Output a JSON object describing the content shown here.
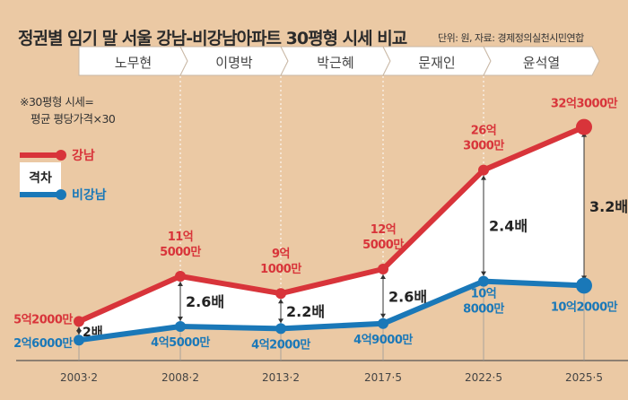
{
  "title": "정권별 임기 말 서울 강남-비강남아파트 30평형 시세 비교",
  "source": "단위: 원, 자료: 경제정의실천시민연합",
  "note": [
    "※30평형 시세=",
    "평균 평당가격×30"
  ],
  "legend": {
    "gangnam": "강남",
    "gap": "격차",
    "non_gangnam": "비강남"
  },
  "colors": {
    "gangnam": "#d8343a",
    "non_gangnam": "#1a78b8",
    "background": "#ebc9a4",
    "gap_fill": "#ffffff"
  },
  "chart_data": {
    "type": "line",
    "title": "정권별 임기 말 서울 강남-비강남아파트 30평형 시세 비교",
    "unit": "원",
    "periods": [
      "노무현",
      "이명박",
      "박근혜",
      "문재인",
      "윤석열"
    ],
    "categories": [
      "2003·2",
      "2008·2",
      "2013·2",
      "2017·5",
      "2022·5",
      "2025·5"
    ],
    "series": [
      {
        "name": "강남",
        "values_eok": [
          5.2,
          11.5,
          9.1,
          12.5,
          26.3,
          32.3
        ],
        "labels": [
          "5억2000만",
          "11억\n5000만",
          "9억\n1000만",
          "12억\n5000만",
          "26억\n3000만",
          "32억3000만"
        ]
      },
      {
        "name": "비강남",
        "values_eok": [
          2.6,
          4.5,
          4.2,
          4.9,
          10.8,
          10.2
        ],
        "labels": [
          "2억6000만",
          "4억5000만",
          "4억2000만",
          "4억9000만",
          "10억\n8000만",
          "10억2000만"
        ]
      }
    ],
    "ratios": [
      "2배",
      "2.6배",
      "2.2배",
      "2.6배",
      "2.4배",
      "3.2배"
    ],
    "grid": false,
    "legend": "left"
  }
}
